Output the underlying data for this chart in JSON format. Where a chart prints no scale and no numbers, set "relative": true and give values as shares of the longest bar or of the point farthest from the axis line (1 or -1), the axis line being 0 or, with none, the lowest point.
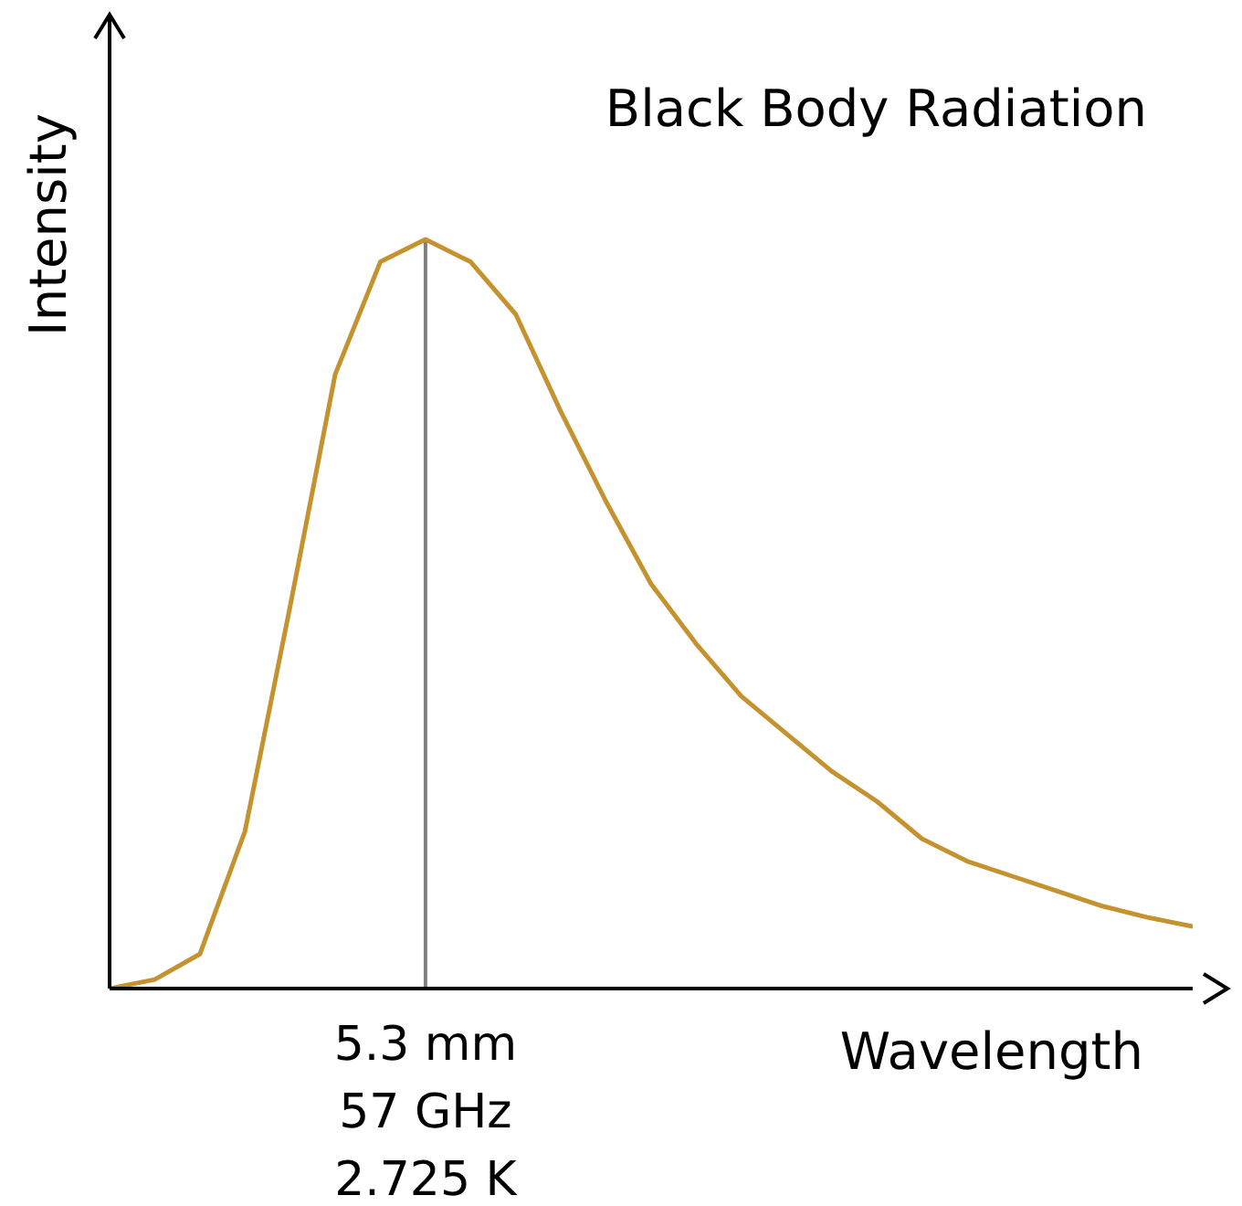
{
  "chart_data": {
    "type": "line",
    "title": "Black Body Radiation",
    "xlabel": "Wavelength",
    "ylabel": "Intensity",
    "relative": true,
    "marker": "none",
    "line_style": "solid",
    "annotations": [
      "5.3 mm",
      "57 GHz",
      "2.725 K"
    ],
    "categories": [
      null,
      null,
      null,
      null,
      null,
      null,
      null,
      null,
      null,
      null,
      null,
      null,
      null,
      null,
      null,
      null,
      null,
      null,
      null,
      null,
      null,
      null,
      null,
      null,
      null
    ],
    "series": [
      {
        "color": "#c4922f",
        "values": [
          0,
          0.012,
          0.046,
          0.21,
          0.51,
          0.82,
          0.97,
          1,
          0.97,
          0.9,
          0.77,
          0.65,
          0.54,
          0.46,
          0.39,
          0.34,
          0.29,
          0.25,
          0.2,
          0.17,
          0.15,
          0.13,
          0.11,
          0.095,
          0.083
        ]
      }
    ]
  }
}
